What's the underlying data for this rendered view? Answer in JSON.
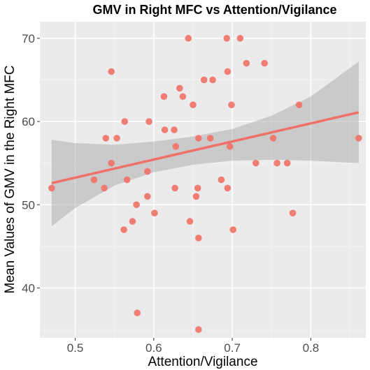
{
  "colors": {
    "panel": "#ebebeb",
    "grid_major": "#ffffff",
    "grid_minor": "#f5f5f5",
    "points": "#f07167",
    "fit_line": "#f07167",
    "ci_band": "#999999",
    "ticks": "#4d4d4d"
  },
  "chart_data": {
    "type": "scatter",
    "title": "GMV in Right MFC vs Attention/Vigilance",
    "xlabel": "Attention/Vigilance",
    "ylabel": "Mean Values of GMV in the Right MFC",
    "xlim": [
      0.455,
      0.87
    ],
    "ylim": [
      34,
      72
    ],
    "xticks": [
      0.5,
      0.6,
      0.7,
      0.8
    ],
    "xtick_labels": [
      "0.5",
      "0.6",
      "0.7",
      "0.8"
    ],
    "yticks": [
      40,
      50,
      60,
      70
    ],
    "ytick_labels": [
      "40",
      "50",
      "60",
      "70"
    ],
    "grid": true,
    "points": [
      {
        "x": 0.47,
        "y": 52
      },
      {
        "x": 0.524,
        "y": 53
      },
      {
        "x": 0.537,
        "y": 52
      },
      {
        "x": 0.539,
        "y": 58
      },
      {
        "x": 0.546,
        "y": 55
      },
      {
        "x": 0.546,
        "y": 66
      },
      {
        "x": 0.553,
        "y": 58
      },
      {
        "x": 0.562,
        "y": 47
      },
      {
        "x": 0.563,
        "y": 60
      },
      {
        "x": 0.566,
        "y": 53
      },
      {
        "x": 0.573,
        "y": 48
      },
      {
        "x": 0.578,
        "y": 50
      },
      {
        "x": 0.579,
        "y": 37
      },
      {
        "x": 0.592,
        "y": 54
      },
      {
        "x": 0.592,
        "y": 51
      },
      {
        "x": 0.594,
        "y": 60
      },
      {
        "x": 0.601,
        "y": 49
      },
      {
        "x": 0.613,
        "y": 63
      },
      {
        "x": 0.614,
        "y": 59
      },
      {
        "x": 0.626,
        "y": 59
      },
      {
        "x": 0.627,
        "y": 52
      },
      {
        "x": 0.628,
        "y": 57
      },
      {
        "x": 0.633,
        "y": 64
      },
      {
        "x": 0.637,
        "y": 63
      },
      {
        "x": 0.644,
        "y": 70
      },
      {
        "x": 0.646,
        "y": 48
      },
      {
        "x": 0.65,
        "y": 62
      },
      {
        "x": 0.654,
        "y": 51
      },
      {
        "x": 0.656,
        "y": 52
      },
      {
        "x": 0.657,
        "y": 46
      },
      {
        "x": 0.657,
        "y": 35
      },
      {
        "x": 0.657,
        "y": 58
      },
      {
        "x": 0.664,
        "y": 65
      },
      {
        "x": 0.672,
        "y": 58
      },
      {
        "x": 0.675,
        "y": 65
      },
      {
        "x": 0.686,
        "y": 53
      },
      {
        "x": 0.693,
        "y": 70
      },
      {
        "x": 0.694,
        "y": 66
      },
      {
        "x": 0.694,
        "y": 52
      },
      {
        "x": 0.697,
        "y": 57
      },
      {
        "x": 0.699,
        "y": 62
      },
      {
        "x": 0.701,
        "y": 47
      },
      {
        "x": 0.71,
        "y": 70
      },
      {
        "x": 0.718,
        "y": 67
      },
      {
        "x": 0.73,
        "y": 55
      },
      {
        "x": 0.741,
        "y": 67
      },
      {
        "x": 0.752,
        "y": 58
      },
      {
        "x": 0.757,
        "y": 55
      },
      {
        "x": 0.77,
        "y": 55
      },
      {
        "x": 0.777,
        "y": 49
      },
      {
        "x": 0.785,
        "y": 62
      },
      {
        "x": 0.861,
        "y": 58
      }
    ],
    "fit_line": {
      "x": [
        0.47,
        0.861
      ],
      "y": [
        52.6,
        61.1
      ]
    },
    "ci_band": {
      "x": [
        0.47,
        0.5,
        0.55,
        0.6,
        0.65,
        0.7,
        0.75,
        0.8,
        0.861
      ],
      "lower": [
        47.4,
        49.6,
        52.3,
        53.9,
        54.8,
        55.3,
        55.4,
        55.3,
        55.0
      ],
      "upper": [
        57.8,
        57.4,
        57.2,
        57.6,
        58.2,
        59.1,
        60.7,
        63.0,
        67.2
      ]
    }
  }
}
